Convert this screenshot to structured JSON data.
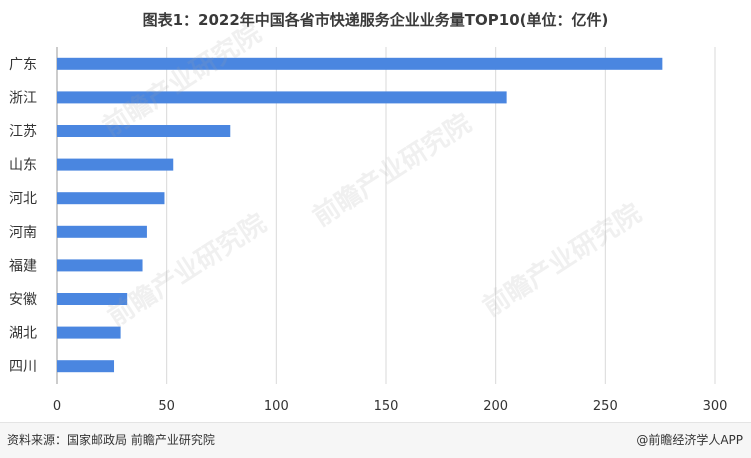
{
  "title": "图表1：2022年中国各省市快递服务企业业务量TOP10(单位：亿件)",
  "footer": {
    "source": "资料来源：国家邮政局 前瞻产业研究院",
    "credit": "@前瞻经济学人APP"
  },
  "watermark": "前瞻产业研究院",
  "colors": {
    "bar": "#4a86e0",
    "grid": "#d9d9d9",
    "axis": "#999999"
  },
  "chart_data": {
    "type": "bar",
    "orientation": "horizontal",
    "categories": [
      "广东",
      "浙江",
      "江苏",
      "山东",
      "河北",
      "河南",
      "福建",
      "安徽",
      "湖北",
      "四川"
    ],
    "values": [
      276,
      205,
      79,
      53,
      49,
      41,
      39,
      32,
      29,
      26
    ],
    "xlim": [
      0,
      300
    ],
    "xticks": [
      0,
      50,
      100,
      150,
      200,
      250,
      300
    ],
    "grid": true,
    "legend": "none"
  }
}
